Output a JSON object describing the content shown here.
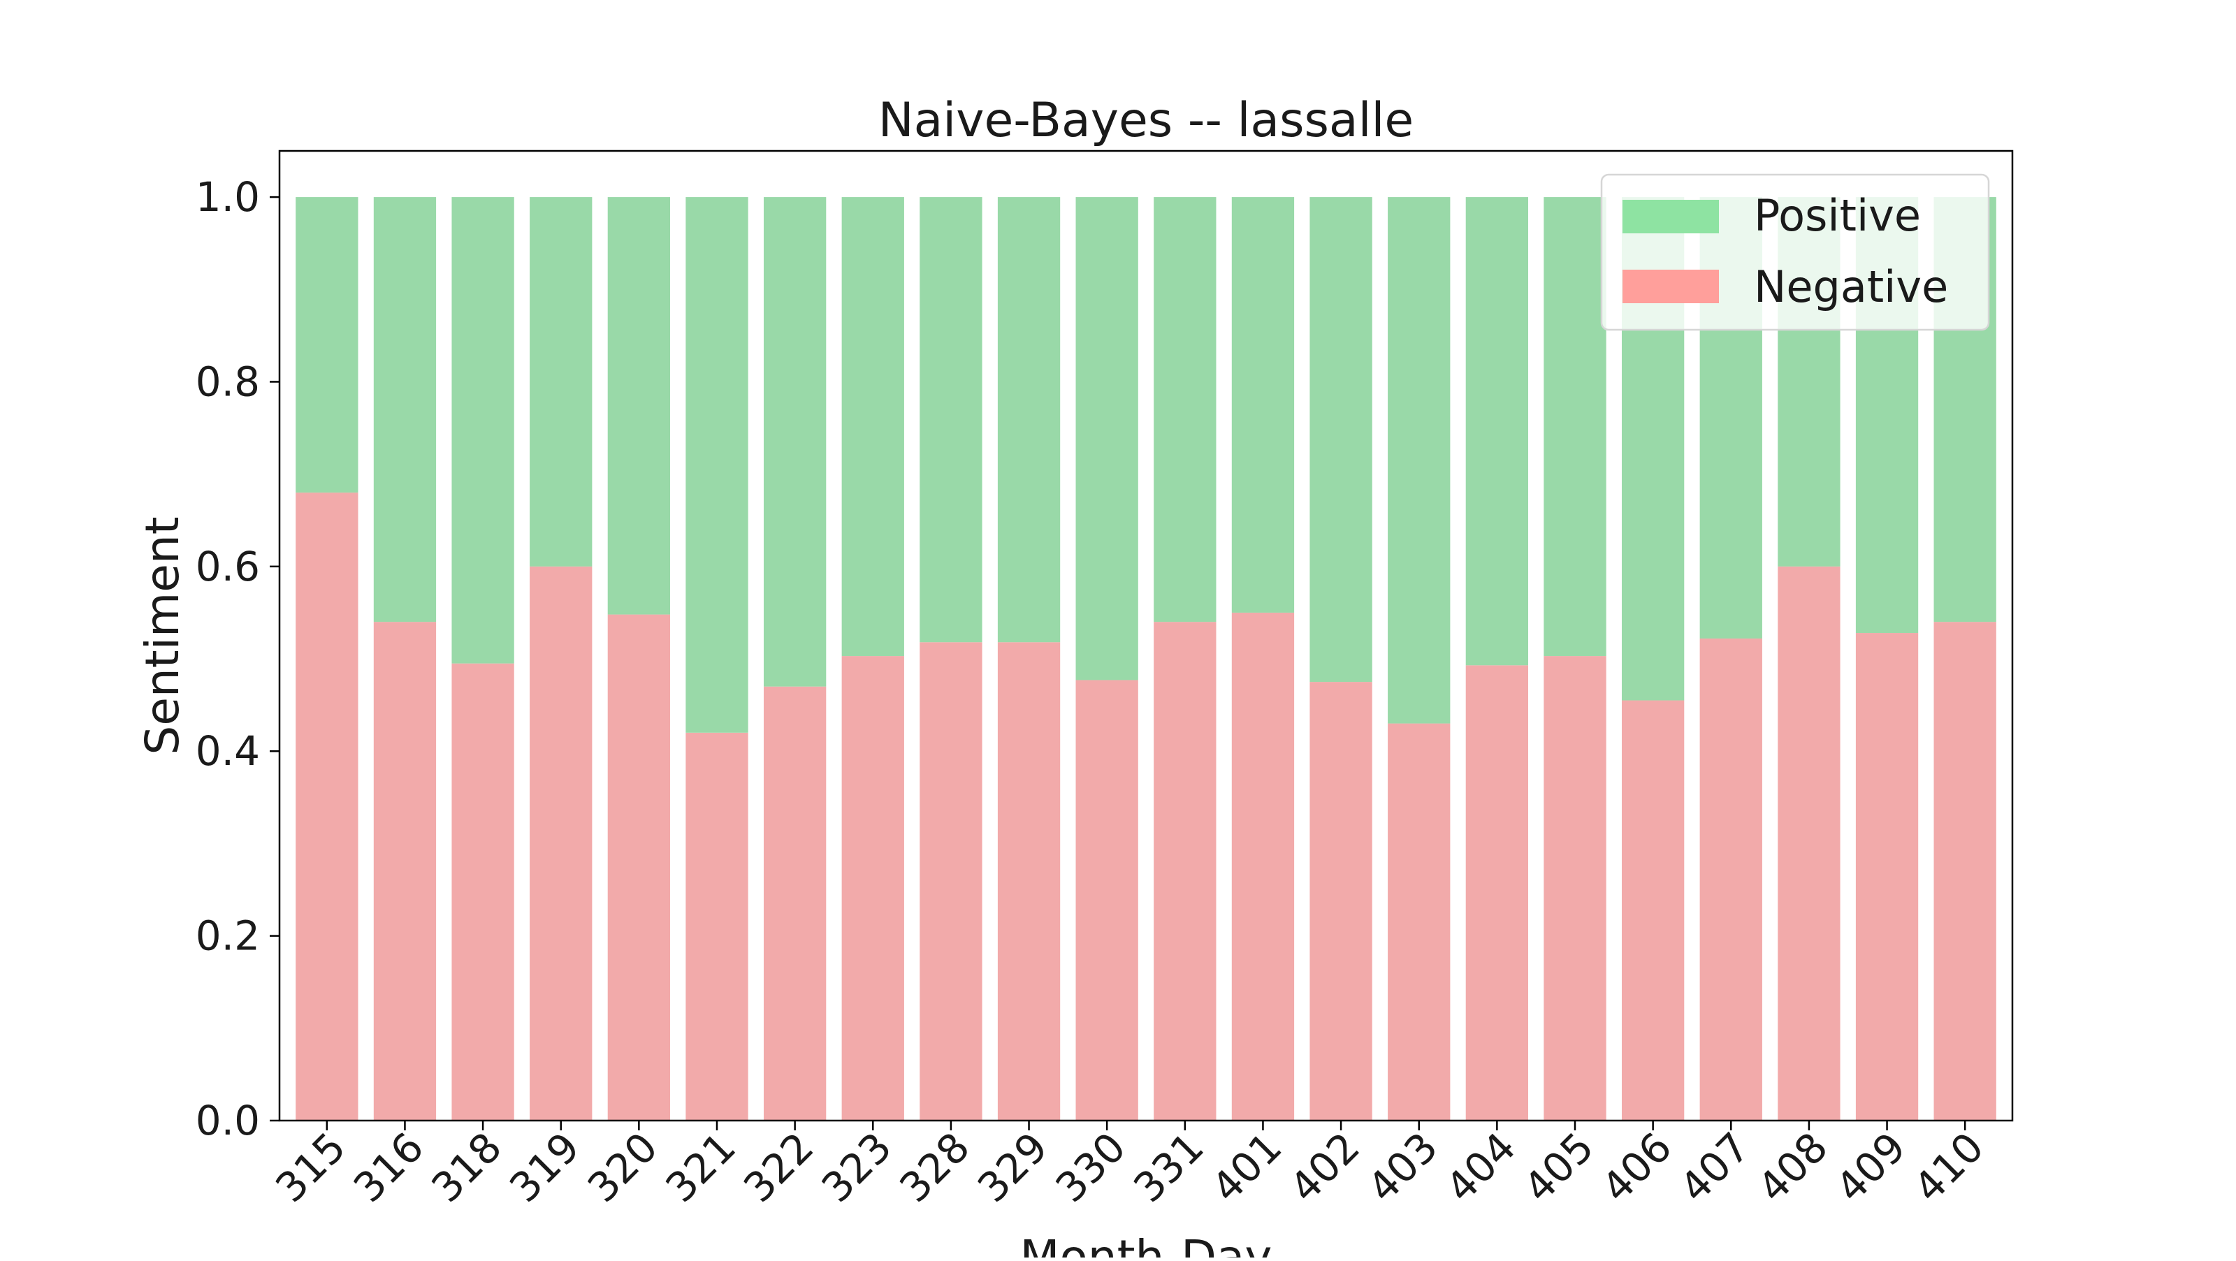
{
  "chart_data": {
    "type": "bar",
    "stacked": true,
    "title": "Naive-Bayes  --  lassalle",
    "xlabel": "Month-Day",
    "ylabel": "Sentiment",
    "ylim": [
      0,
      1.05
    ],
    "yticks": [
      "0.0",
      "0.2",
      "0.4",
      "0.6",
      "0.8",
      "1.0"
    ],
    "categories": [
      "315",
      "316",
      "318",
      "319",
      "320",
      "321",
      "322",
      "323",
      "328",
      "329",
      "330",
      "331",
      "401",
      "402",
      "403",
      "404",
      "405",
      "406",
      "407",
      "408",
      "409",
      "410"
    ],
    "series": [
      {
        "name": "Negative",
        "color": "#f2aaaa",
        "values": [
          0.68,
          0.54,
          0.495,
          0.6,
          0.548,
          0.42,
          0.47,
          0.503,
          0.518,
          0.518,
          0.477,
          0.54,
          0.55,
          0.475,
          0.43,
          0.493,
          0.503,
          0.455,
          0.522,
          0.6,
          0.528,
          0.54
        ]
      },
      {
        "name": "Positive",
        "color": "#99d9a8",
        "values": [
          0.32,
          0.46,
          0.505,
          0.4,
          0.452,
          0.58,
          0.53,
          0.497,
          0.482,
          0.482,
          0.523,
          0.46,
          0.45,
          0.525,
          0.57,
          0.507,
          0.497,
          0.545,
          0.478,
          0.4,
          0.472,
          0.46
        ]
      }
    ],
    "legend": {
      "placement": "top-right",
      "entries": [
        {
          "label": "Positive",
          "color": "#8ee3a2"
        },
        {
          "label": "Negative",
          "color": "#ff9f9b"
        }
      ]
    },
    "grid": false
  }
}
